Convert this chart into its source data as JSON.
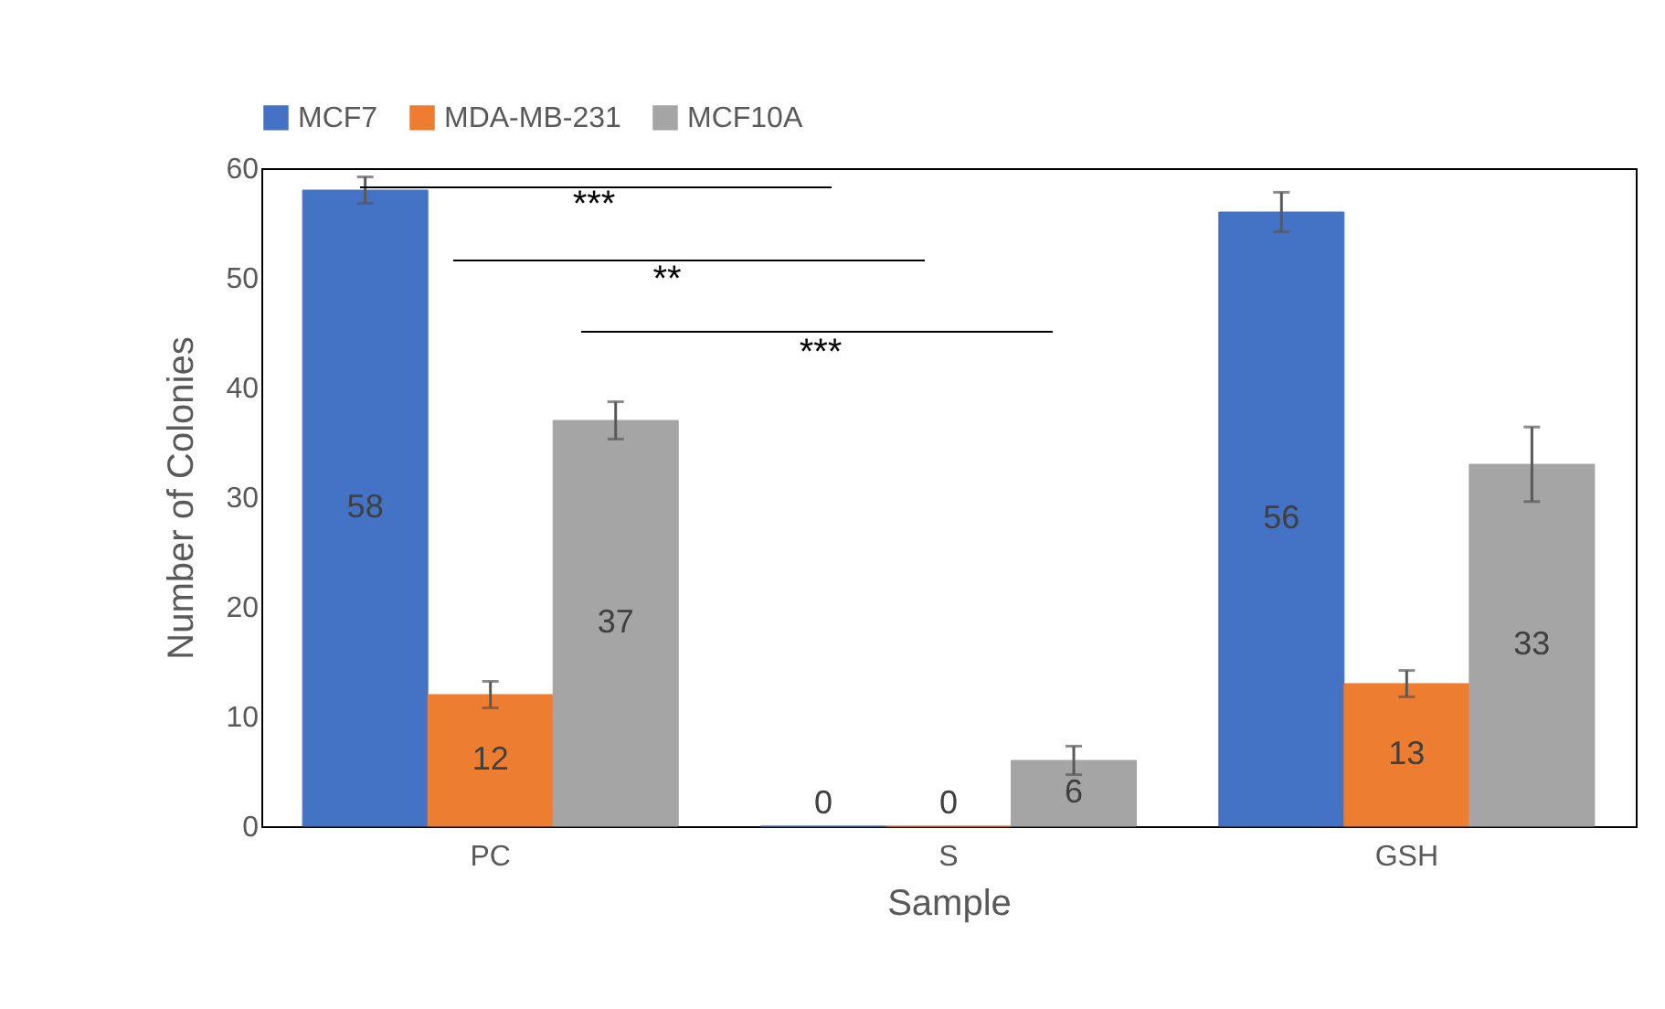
{
  "chart_data": {
    "type": "bar",
    "xlabel": "Sample",
    "ylabel": "Number of Colonies",
    "categories": [
      "PC",
      "S",
      "GSH"
    ],
    "series": [
      {
        "name": "MCF7",
        "color": "#4472c4",
        "values": [
          58,
          0,
          56
        ],
        "errors": [
          1.2,
          null,
          1.8
        ]
      },
      {
        "name": "MDA-MB-231",
        "color": "#ed7d31",
        "values": [
          12,
          0,
          13
        ],
        "errors": [
          1.2,
          null,
          1.2
        ]
      },
      {
        "name": "MCF10A",
        "color": "#a5a5a5",
        "values": [
          37,
          6,
          33
        ],
        "errors": [
          1.7,
          1.3,
          3.4
        ]
      }
    ],
    "ylim": [
      0,
      60
    ],
    "yticks": [
      0,
      10,
      20,
      30,
      40,
      50,
      60
    ],
    "grid": false,
    "legend": "top",
    "data_labels": true,
    "annotations": [
      "***",
      "**",
      "***"
    ]
  }
}
